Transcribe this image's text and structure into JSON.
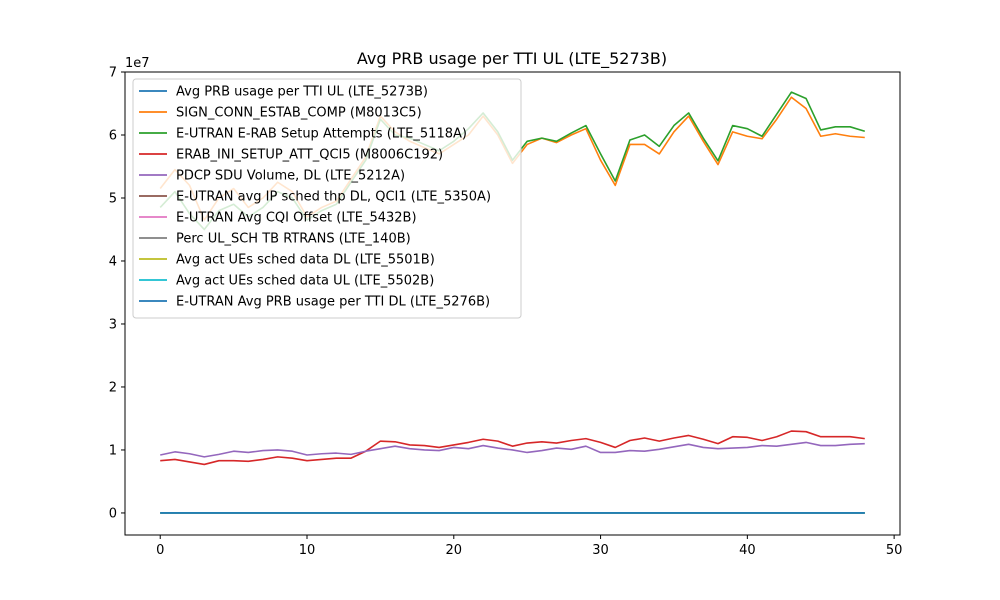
{
  "chart_data": {
    "type": "line",
    "title": "Avg PRB usage per TTI UL (LTE_5273B)",
    "xlabel": "",
    "ylabel": "",
    "y_multiplier_label": "1e7",
    "xlim": [
      -2.4,
      50.4
    ],
    "ylim": [
      -3500000,
      70000000
    ],
    "x_ticks": [
      0,
      10,
      20,
      30,
      40,
      50
    ],
    "y_ticks": [
      0,
      10000000,
      20000000,
      30000000,
      40000000,
      50000000,
      60000000,
      70000000
    ],
    "y_tick_labels": [
      "0",
      "1",
      "2",
      "3",
      "4",
      "5",
      "6",
      "7"
    ],
    "grid": false,
    "legend_position": "upper-left",
    "x": [
      0,
      1,
      2,
      3,
      4,
      5,
      6,
      7,
      8,
      9,
      10,
      11,
      12,
      13,
      14,
      15,
      16,
      17,
      18,
      19,
      20,
      21,
      22,
      23,
      24,
      25,
      26,
      27,
      28,
      29,
      30,
      31,
      32,
      33,
      34,
      35,
      36,
      37,
      38,
      39,
      40,
      41,
      42,
      43,
      44,
      45,
      46,
      47,
      48
    ],
    "series": [
      {
        "name": "Avg PRB usage per TTI UL (LTE_5273B)",
        "color": "#1f77b4",
        "values": [
          0,
          0,
          0,
          0,
          0,
          0,
          0,
          0,
          0,
          0,
          0,
          0,
          0,
          0,
          0,
          0,
          0,
          0,
          0,
          0,
          0,
          0,
          0,
          0,
          0,
          0,
          0,
          0,
          0,
          0,
          0,
          0,
          0,
          0,
          0,
          0,
          0,
          0,
          0,
          0,
          0,
          0,
          0,
          0,
          0,
          0,
          0,
          0,
          0
        ]
      },
      {
        "name": "SIGN_CONN_ESTAB_COMP (M8013C5)",
        "color": "#ff7f0e",
        "values": [
          51500000,
          54500000,
          52000000,
          46500000,
          50000000,
          51500000,
          48500000,
          50000000,
          52500000,
          51000000,
          47000000,
          48500000,
          49500000,
          53000000,
          56500000,
          63000000,
          60500000,
          59000000,
          58000000,
          57000000,
          58500000,
          60000000,
          63000000,
          60000000,
          55500000,
          58500000,
          59500000,
          58800000,
          60000000,
          61000000,
          56000000,
          52000000,
          58500000,
          58500000,
          57000000,
          60500000,
          63000000,
          59000000,
          55300000,
          60500000,
          59800000,
          59400000,
          62500000,
          66000000,
          64200000,
          59800000,
          60200000,
          59800000,
          59600000
        ]
      },
      {
        "name": "E-UTRAN E-RAB Setup Attempts (LTE_5118A)",
        "color": "#2ca02c",
        "values": [
          48500000,
          51000000,
          47500000,
          45000000,
          48000000,
          49000000,
          47000000,
          48500000,
          51000000,
          50000000,
          46500000,
          48000000,
          49000000,
          52500000,
          56000000,
          62500000,
          60000000,
          59500000,
          58500000,
          57500000,
          59000000,
          61000000,
          63500000,
          60500000,
          56000000,
          59000000,
          59500000,
          59000000,
          60300000,
          61500000,
          57000000,
          52700000,
          59200000,
          60000000,
          58200000,
          61500000,
          63500000,
          59500000,
          55900000,
          61500000,
          61000000,
          59800000,
          63300000,
          66800000,
          65800000,
          60800000,
          61300000,
          61300000,
          60600000
        ]
      },
      {
        "name": "ERAB_INI_SETUP_ATT_QCI5 (M8006C192)",
        "color": "#d62728",
        "values": [
          8300000,
          8500000,
          8100000,
          7700000,
          8300000,
          8300000,
          8200000,
          8500000,
          8900000,
          8700000,
          8300000,
          8500000,
          8700000,
          8700000,
          9800000,
          11400000,
          11300000,
          10800000,
          10700000,
          10400000,
          10800000,
          11200000,
          11700000,
          11400000,
          10600000,
          11100000,
          11300000,
          11100000,
          11500000,
          11800000,
          11200000,
          10400000,
          11500000,
          11900000,
          11400000,
          11900000,
          12300000,
          11700000,
          11000000,
          12100000,
          12000000,
          11500000,
          12100000,
          13000000,
          12900000,
          12100000,
          12100000,
          12100000,
          11800000
        ]
      },
      {
        "name": "PDCP SDU Volume, DL (LTE_5212A)",
        "color": "#9467bd",
        "values": [
          9200000,
          9700000,
          9400000,
          8900000,
          9300000,
          9800000,
          9600000,
          9900000,
          10000000,
          9800000,
          9200000,
          9400000,
          9500000,
          9300000,
          9800000,
          10200000,
          10600000,
          10200000,
          10000000,
          9900000,
          10400000,
          10200000,
          10700000,
          10300000,
          10000000,
          9600000,
          9900000,
          10300000,
          10100000,
          10600000,
          9600000,
          9600000,
          9900000,
          9800000,
          10100000,
          10500000,
          10900000,
          10400000,
          10200000,
          10300000,
          10400000,
          10700000,
          10600000,
          10900000,
          11200000,
          10700000,
          10700000,
          10900000,
          11000000
        ]
      },
      {
        "name": "E-UTRAN avg IP sched thp DL, QCI1 (LTE_5350A)",
        "color": "#8c564b",
        "values": [
          0,
          0,
          0,
          0,
          0,
          0,
          0,
          0,
          0,
          0,
          0,
          0,
          0,
          0,
          0,
          0,
          0,
          0,
          0,
          0,
          0,
          0,
          0,
          0,
          0,
          0,
          0,
          0,
          0,
          0,
          0,
          0,
          0,
          0,
          0,
          0,
          0,
          0,
          0,
          0,
          0,
          0,
          0,
          0,
          0,
          0,
          0,
          0,
          0
        ]
      },
      {
        "name": "E-UTRAN Avg CQI Offset (LTE_5432B)",
        "color": "#e377c2",
        "values": [
          0,
          0,
          0,
          0,
          0,
          0,
          0,
          0,
          0,
          0,
          0,
          0,
          0,
          0,
          0,
          0,
          0,
          0,
          0,
          0,
          0,
          0,
          0,
          0,
          0,
          0,
          0,
          0,
          0,
          0,
          0,
          0,
          0,
          0,
          0,
          0,
          0,
          0,
          0,
          0,
          0,
          0,
          0,
          0,
          0,
          0,
          0,
          0,
          0
        ]
      },
      {
        "name": "Perc UL_SCH TB RTRANS (LTE_140B)",
        "color": "#7f7f7f",
        "values": [
          0,
          0,
          0,
          0,
          0,
          0,
          0,
          0,
          0,
          0,
          0,
          0,
          0,
          0,
          0,
          0,
          0,
          0,
          0,
          0,
          0,
          0,
          0,
          0,
          0,
          0,
          0,
          0,
          0,
          0,
          0,
          0,
          0,
          0,
          0,
          0,
          0,
          0,
          0,
          0,
          0,
          0,
          0,
          0,
          0,
          0,
          0,
          0,
          0
        ]
      },
      {
        "name": "Avg act UEs sched data DL (LTE_5501B)",
        "color": "#bcbd22",
        "values": [
          0,
          0,
          0,
          0,
          0,
          0,
          0,
          0,
          0,
          0,
          0,
          0,
          0,
          0,
          0,
          0,
          0,
          0,
          0,
          0,
          0,
          0,
          0,
          0,
          0,
          0,
          0,
          0,
          0,
          0,
          0,
          0,
          0,
          0,
          0,
          0,
          0,
          0,
          0,
          0,
          0,
          0,
          0,
          0,
          0,
          0,
          0,
          0,
          0
        ]
      },
      {
        "name": "Avg act UEs sched data UL (LTE_5502B)",
        "color": "#17becf",
        "values": [
          0,
          0,
          0,
          0,
          0,
          0,
          0,
          0,
          0,
          0,
          0,
          0,
          0,
          0,
          0,
          0,
          0,
          0,
          0,
          0,
          0,
          0,
          0,
          0,
          0,
          0,
          0,
          0,
          0,
          0,
          0,
          0,
          0,
          0,
          0,
          0,
          0,
          0,
          0,
          0,
          0,
          0,
          0,
          0,
          0,
          0,
          0,
          0,
          0
        ]
      },
      {
        "name": "E-UTRAN Avg PRB usage per TTI DL (LTE_5276B)",
        "color": "#1f77b4",
        "values": [
          0,
          0,
          0,
          0,
          0,
          0,
          0,
          0,
          0,
          0,
          0,
          0,
          0,
          0,
          0,
          0,
          0,
          0,
          0,
          0,
          0,
          0,
          0,
          0,
          0,
          0,
          0,
          0,
          0,
          0,
          0,
          0,
          0,
          0,
          0,
          0,
          0,
          0,
          0,
          0,
          0,
          0,
          0,
          0,
          0,
          0,
          0,
          0,
          0
        ]
      }
    ]
  }
}
